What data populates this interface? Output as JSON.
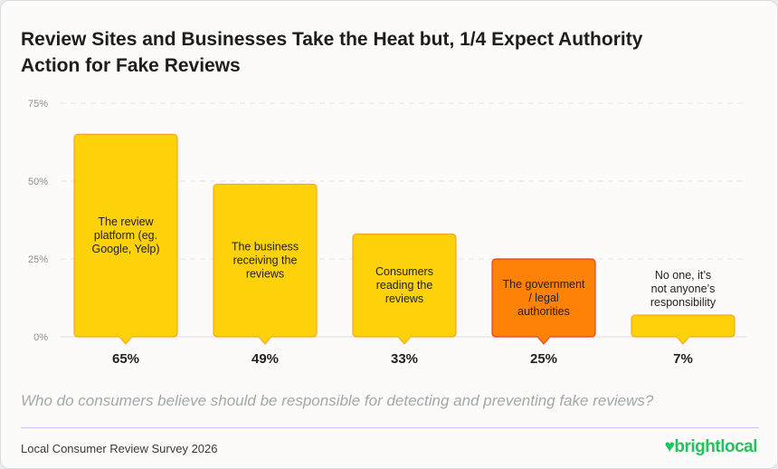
{
  "title": "Review Sites and Businesses Take the Heat but, 1/4 Expect Authority Action for Fake Reviews",
  "question": "Who do consumers believe should be responsible for detecting and preventing fake reviews?",
  "footer": "Local Consumer Review Survey 2026",
  "logo": "brightlocal",
  "colors": {
    "bar": "#fdd20a",
    "bar_border": "#f8a51e",
    "highlight": "#fd8205",
    "highlight_border": "#ef3b2a",
    "logo": "#1fc45c"
  },
  "chart_data": {
    "type": "bar",
    "categories": [
      "The review platform (eg. Google, Yelp)",
      "The business receiving the reviews",
      "Consumers reading the reviews",
      "The government / legal authorities",
      "No one, it’s not anyone’s responsibility"
    ],
    "values": [
      65,
      49,
      33,
      25,
      7
    ],
    "value_labels": [
      "65%",
      "49%",
      "33%",
      "25%",
      "7%"
    ],
    "highlight_index": 3,
    "ylim": [
      0,
      75
    ],
    "yticks": [
      0,
      25,
      50,
      75
    ],
    "ytick_labels": [
      "0%",
      "25%",
      "50%",
      "75%"
    ],
    "grid": true
  }
}
